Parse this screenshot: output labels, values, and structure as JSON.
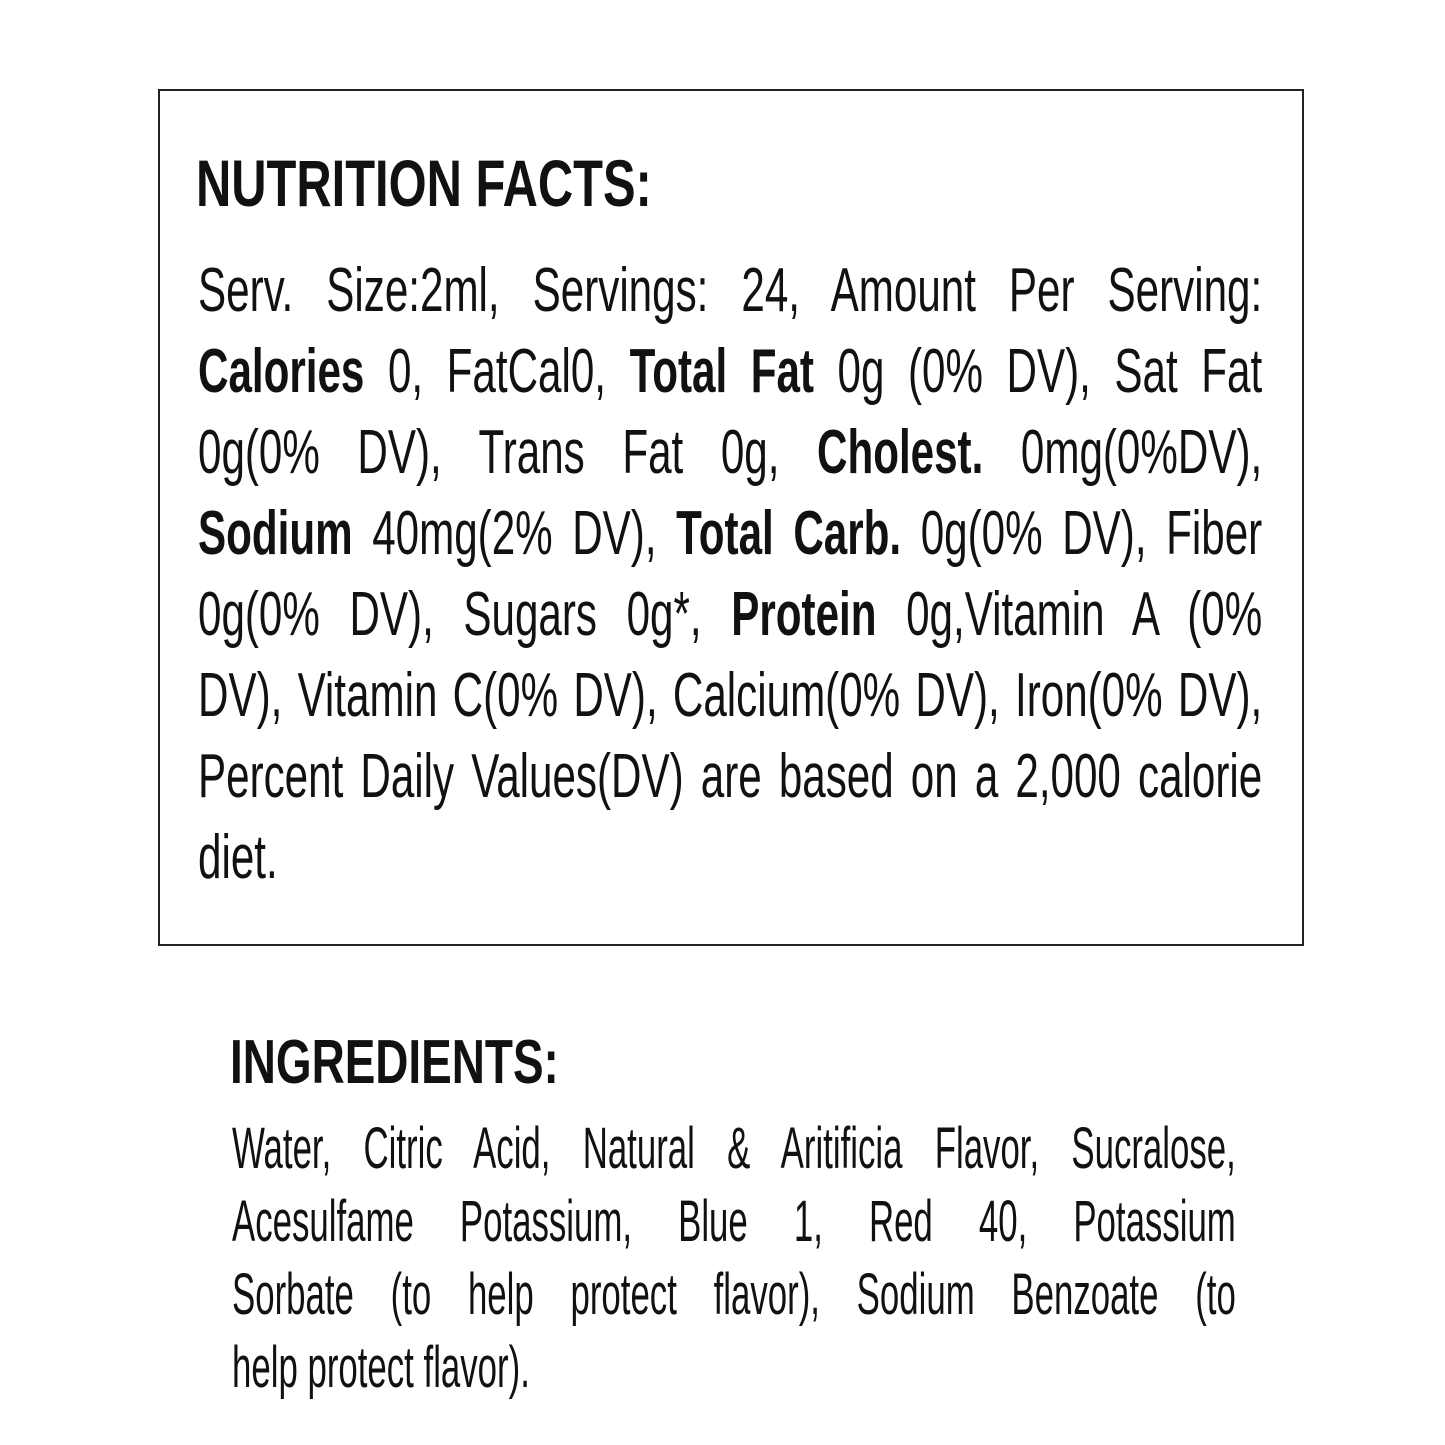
{
  "nutrition": {
    "title": "NUTRITION FACTS:",
    "lines": [
      [
        [
          "Serv. Size:2ml, Servings: 24, Amount Per Serving:",
          false
        ]
      ],
      [
        [
          "Calories",
          true
        ],
        [
          " 0, FatCal0, ",
          false
        ],
        [
          "Total Fat",
          true
        ],
        [
          " 0g (0% DV), Sat Fat",
          false
        ]
      ],
      [
        [
          "0g(0% DV), Trans Fat 0g, ",
          false
        ],
        [
          "Cholest.",
          true
        ],
        [
          " 0mg(0%DV),",
          false
        ]
      ],
      [
        [
          "Sodium",
          true
        ],
        [
          " 40mg(2% DV), ",
          false
        ],
        [
          "Total Carb.",
          true
        ],
        [
          " 0g(0% DV), Fiber",
          false
        ]
      ],
      [
        [
          "0g(0% DV), Sugars 0g*, ",
          false
        ],
        [
          "Protein",
          true
        ],
        [
          " 0g,Vitamin A (0%",
          false
        ]
      ],
      [
        [
          "DV), Vitamin C(0% DV), Calcium(0% DV), Iron(0% DV),",
          false
        ]
      ],
      [
        [
          "Percent Daily Values(DV) are based on a 2,000 calorie",
          false
        ]
      ],
      [
        [
          "diet.",
          false
        ]
      ]
    ]
  },
  "ingredients": {
    "title": "INGREDIENTS:",
    "lines": [
      [
        [
          "Water, Citric Acid, Natural & Aritificia Flavor, Sucralose,",
          false
        ]
      ],
      [
        [
          "Acesulfame Potassium, Blue 1, Red 40, Potassium",
          false
        ]
      ],
      [
        [
          "Sorbate (to help protect flavor), Sodium Benzoate (to",
          false
        ]
      ],
      [
        [
          "help protect flavor).",
          false
        ]
      ]
    ]
  }
}
